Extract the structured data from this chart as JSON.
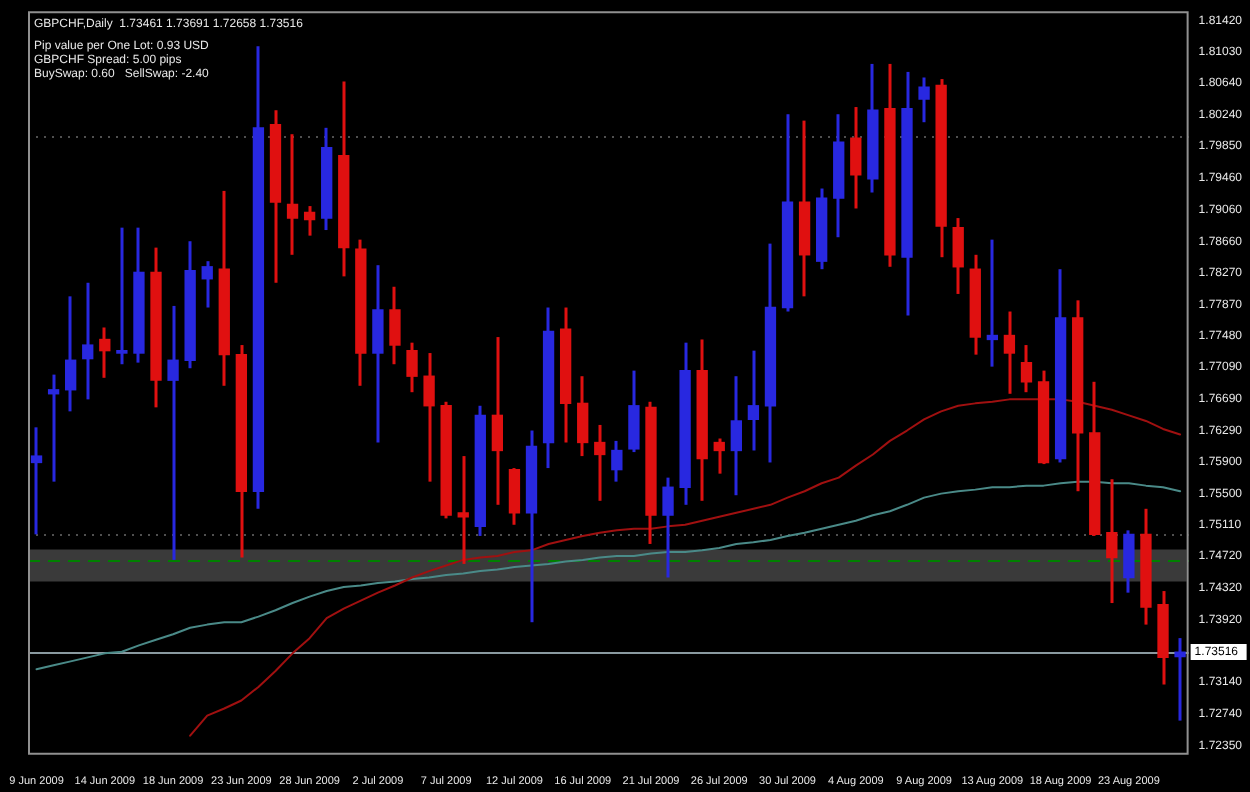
{
  "chart_data": {
    "type": "candlestick",
    "title": "GBPCHF,Daily  1.73461 1.73691 1.72658 1.73516",
    "annotations": [
      "Pip value per One Lot: 0.93 USD",
      "GBPCHF Spread: 5.00 pips",
      "BuySwap: 0.60   SellSwap: -2.40"
    ],
    "categories": [
      "9 Jun 2009",
      null,
      null,
      null,
      "14 Jun 2009",
      null,
      null,
      null,
      "18 Jun 2009",
      null,
      null,
      null,
      "23 Jun 2009",
      null,
      null,
      null,
      "28 Jun 2009",
      null,
      null,
      null,
      "2 Jul 2009",
      null,
      null,
      null,
      "7 Jul 2009",
      null,
      null,
      null,
      "12 Jul 2009",
      null,
      null,
      null,
      "16 Jul 2009",
      null,
      null,
      null,
      "21 Jul 2009",
      null,
      null,
      null,
      "26 Jul 2009",
      null,
      null,
      null,
      "30 Jul 2009",
      null,
      null,
      null,
      "4 Aug 2009",
      null,
      null,
      null,
      "9 Aug 2009",
      null,
      null,
      null,
      "13 Aug 2009",
      null,
      null,
      null,
      "18 Aug 2009",
      null,
      null,
      null,
      "23 Aug 2009",
      null,
      null,
      null
    ],
    "ohlc": [
      [
        1.7589,
        1.7633,
        1.7499,
        1.7597
      ],
      [
        1.7675,
        1.7699,
        1.7565,
        1.768
      ],
      [
        1.768,
        1.7797,
        1.7653,
        1.7717
      ],
      [
        1.7719,
        1.7814,
        1.7668,
        1.7736
      ],
      [
        1.7743,
        1.7758,
        1.7695,
        1.7729
      ],
      [
        1.7726,
        1.7883,
        1.7712,
        1.7729
      ],
      [
        1.7726,
        1.7883,
        1.7714,
        1.7827
      ],
      [
        1.7827,
        1.7858,
        1.7658,
        1.7692
      ],
      [
        1.7692,
        1.7785,
        1.7467,
        1.7717
      ],
      [
        1.7717,
        1.7866,
        1.7707,
        1.7829
      ],
      [
        1.7819,
        1.7841,
        1.7783,
        1.7834
      ],
      [
        1.7831,
        1.7929,
        1.7685,
        1.7724
      ],
      [
        1.7724,
        1.7736,
        1.747,
        1.7553
      ],
      [
        1.7553,
        1.811,
        1.7531,
        1.8008
      ],
      [
        1.8012,
        1.803,
        1.7814,
        1.7915
      ],
      [
        1.7912,
        1.8,
        1.7849,
        1.7895
      ],
      [
        1.7902,
        1.791,
        1.7873,
        1.7893
      ],
      [
        1.7895,
        1.8008,
        1.788,
        1.7983
      ],
      [
        1.7973,
        1.8066,
        1.7822,
        1.7858
      ],
      [
        1.7856,
        1.7868,
        1.7685,
        1.7726
      ],
      [
        1.7726,
        1.7836,
        1.7614,
        1.778
      ],
      [
        1.778,
        1.7809,
        1.7712,
        1.7736
      ],
      [
        1.7729,
        1.7739,
        1.7677,
        1.7697
      ],
      [
        1.7697,
        1.7726,
        1.7565,
        1.766
      ],
      [
        1.766,
        1.7665,
        1.7519,
        1.7523
      ],
      [
        1.7526,
        1.7597,
        1.7462,
        1.7521
      ],
      [
        1.7509,
        1.766,
        1.7497,
        1.7648
      ],
      [
        1.7648,
        1.7746,
        1.7536,
        1.7604
      ],
      [
        1.758,
        1.7582,
        1.7511,
        1.7526
      ],
      [
        1.7526,
        1.7629,
        1.7389,
        1.7609
      ],
      [
        1.7614,
        1.7783,
        1.7582,
        1.7753
      ],
      [
        1.7756,
        1.7783,
        1.7614,
        1.7663
      ],
      [
        1.7663,
        1.7697,
        1.7597,
        1.7614
      ],
      [
        1.7614,
        1.7636,
        1.7541,
        1.7599
      ],
      [
        1.758,
        1.7616,
        1.7565,
        1.7604
      ],
      [
        1.7606,
        1.7704,
        1.7602,
        1.766
      ],
      [
        1.7658,
        1.7665,
        1.7487,
        1.7523
      ],
      [
        1.7523,
        1.757,
        1.7445,
        1.7558
      ],
      [
        1.7558,
        1.7739,
        1.7536,
        1.7704
      ],
      [
        1.7704,
        1.7743,
        1.7541,
        1.7594
      ],
      [
        1.7614,
        1.7619,
        1.7575,
        1.7604
      ],
      [
        1.7604,
        1.7697,
        1.7548,
        1.7641
      ],
      [
        1.7643,
        1.7729,
        1.7604,
        1.766
      ],
      [
        1.766,
        1.7863,
        1.7589,
        1.7783
      ],
      [
        1.7783,
        1.8025,
        1.7778,
        1.7915
      ],
      [
        1.7915,
        1.8017,
        1.7797,
        1.7849
      ],
      [
        1.7841,
        1.7932,
        1.7831,
        1.792
      ],
      [
        1.792,
        1.8025,
        1.7871,
        1.799
      ],
      [
        1.7995,
        1.8034,
        1.7907,
        1.7949
      ],
      [
        1.7944,
        1.8088,
        1.7927,
        1.803
      ],
      [
        1.8032,
        1.8088,
        1.7834,
        1.7849
      ],
      [
        1.7846,
        1.8078,
        1.7773,
        1.8032
      ],
      [
        1.8044,
        1.8071,
        1.8015,
        1.8059
      ],
      [
        1.8061,
        1.8069,
        1.7846,
        1.7885
      ],
      [
        1.7883,
        1.7895,
        1.78,
        1.7834
      ],
      [
        1.7831,
        1.7849,
        1.7724,
        1.7746
      ],
      [
        1.7743,
        1.7868,
        1.7709,
        1.7748
      ],
      [
        1.7748,
        1.7778,
        1.7675,
        1.7726
      ],
      [
        1.7714,
        1.7736,
        1.7677,
        1.769
      ],
      [
        1.769,
        1.7704,
        1.7587,
        1.7589
      ],
      [
        1.7594,
        1.7831,
        1.7589,
        1.777
      ],
      [
        1.777,
        1.7792,
        1.7553,
        1.7626
      ],
      [
        1.7626,
        1.769,
        1.7497,
        1.7499
      ],
      [
        1.7501,
        1.7568,
        1.7413,
        1.747
      ],
      [
        1.7445,
        1.7504,
        1.7426,
        1.7499
      ],
      [
        1.7499,
        1.7531,
        1.7386,
        1.7408
      ],
      [
        1.7411,
        1.7428,
        1.7311,
        1.7345
      ],
      [
        1.73461,
        1.73691,
        1.72658,
        1.73516
      ]
    ],
    "colors": [
      "#2828e0",
      "#2828e0",
      "#2828e0",
      "#2828e0",
      "#e01010",
      "#2828e0",
      "#2828e0",
      "#e01010",
      "#2828e0",
      "#2828e0",
      "#2828e0",
      "#e01010",
      "#e01010",
      "#2828e0",
      "#e01010",
      "#e01010",
      "#e01010",
      "#2828e0",
      "#e01010",
      "#e01010",
      "#2828e0",
      "#e01010",
      "#e01010",
      "#e01010",
      "#e01010",
      "#e01010",
      "#2828e0",
      "#e01010",
      "#e01010",
      "#2828e0",
      "#2828e0",
      "#e01010",
      "#e01010",
      "#e01010",
      "#2828e0",
      "#2828e0",
      "#e01010",
      "#2828e0",
      "#2828e0",
      "#e01010",
      "#e01010",
      "#2828e0",
      "#2828e0",
      "#2828e0",
      "#2828e0",
      "#e01010",
      "#2828e0",
      "#2828e0",
      "#e01010",
      "#2828e0",
      "#e01010",
      "#2828e0",
      "#2828e0",
      "#e01010",
      "#e01010",
      "#e01010",
      "#2828e0",
      "#e01010",
      "#e01010",
      "#e01010",
      "#2828e0",
      "#e01010",
      "#e01010",
      "#e01010",
      "#2828e0",
      "#e01010",
      "#e01010",
      "#2828e0"
    ],
    "series": [
      {
        "type": "line",
        "color": "#a01010",
        "values": [
          null,
          null,
          null,
          null,
          null,
          null,
          null,
          null,
          null,
          1.7247,
          1.7272,
          1.7281,
          1.7291,
          1.7308,
          1.7328,
          1.735,
          1.7369,
          1.7394,
          1.7406,
          1.7416,
          1.7426,
          1.7435,
          1.7445,
          1.7453,
          1.746,
          1.7467,
          1.747,
          1.7472,
          1.7477,
          1.7479,
          1.7487,
          1.7492,
          1.7497,
          1.7501,
          1.7504,
          1.7506,
          1.7506,
          1.7509,
          1.7511,
          1.7516,
          1.7521,
          1.7526,
          1.7531,
          1.7536,
          1.7545,
          1.7553,
          1.7563,
          1.757,
          1.7585,
          1.7599,
          1.7616,
          1.7629,
          1.7643,
          1.7653,
          1.766,
          1.7663,
          1.7665,
          1.7668,
          1.7668,
          1.7668,
          1.7668,
          1.7665,
          1.766,
          1.7655,
          1.7648,
          1.7641,
          1.7631,
          1.7624
        ]
      },
      {
        "type": "line",
        "color": "#4a8a88",
        "values": [
          1.733,
          1.7335,
          1.734,
          1.7345,
          1.735,
          1.7352,
          1.736,
          1.7367,
          1.7374,
          1.7382,
          1.7386,
          1.7389,
          1.7389,
          1.7396,
          1.7404,
          1.7413,
          1.7421,
          1.7428,
          1.7433,
          1.7435,
          1.7438,
          1.744,
          1.7443,
          1.7445,
          1.7448,
          1.745,
          1.7453,
          1.7455,
          1.7458,
          1.746,
          1.7462,
          1.7465,
          1.7467,
          1.747,
          1.7472,
          1.7472,
          1.7475,
          1.7477,
          1.7477,
          1.7479,
          1.7482,
          1.7487,
          1.7489,
          1.7492,
          1.7497,
          1.7501,
          1.7506,
          1.7511,
          1.7516,
          1.7523,
          1.7528,
          1.7536,
          1.7545,
          1.755,
          1.7553,
          1.7555,
          1.7558,
          1.7558,
          1.756,
          1.756,
          1.7563,
          1.7565,
          1.7565,
          1.7563,
          1.7563,
          1.756,
          1.7558,
          1.7553
        ]
      }
    ],
    "ylim": [
      1.7223,
      1.8154
    ],
    "yticks": [
      {
        "value": 1.8142,
        "label": "1.81420"
      },
      {
        "value": 1.8103,
        "label": "1.81030"
      },
      {
        "value": 1.8064,
        "label": "1.80640"
      },
      {
        "value": 1.8024,
        "label": "1.80240"
      },
      {
        "value": 1.7985,
        "label": "1.79850"
      },
      {
        "value": 1.7946,
        "label": "1.79460"
      },
      {
        "value": 1.7906,
        "label": "1.79060"
      },
      {
        "value": 1.7866,
        "label": "1.78660"
      },
      {
        "value": 1.7827,
        "label": "1.78270"
      },
      {
        "value": 1.7787,
        "label": "1.77870"
      },
      {
        "value": 1.7748,
        "label": "1.77480"
      },
      {
        "value": 1.7709,
        "label": "1.77090"
      },
      {
        "value": 1.7669,
        "label": "1.76690"
      },
      {
        "value": 1.7629,
        "label": "1.76290"
      },
      {
        "value": 1.759,
        "label": "1.75900"
      },
      {
        "value": 1.755,
        "label": "1.75500"
      },
      {
        "value": 1.7511,
        "label": "1.75110"
      },
      {
        "value": 1.7472,
        "label": "1.74720"
      },
      {
        "value": 1.7432,
        "label": "1.74320"
      },
      {
        "value": 1.7392,
        "label": "1.73920"
      },
      {
        "value": 1.7314,
        "label": "1.73140"
      },
      {
        "value": 1.7274,
        "label": "1.72740"
      },
      {
        "value": 1.7235,
        "label": "1.72350"
      }
    ],
    "ref_lines": [
      {
        "axis": "y",
        "value": 1.7998,
        "color": "#505050",
        "line_style": "dotted"
      },
      {
        "axis": "y",
        "value": 1.7499,
        "color": "#505050",
        "line_style": "dotted"
      },
      {
        "axis": "y",
        "value": 1.7467,
        "color": "#008000",
        "line_style": "dashed"
      },
      {
        "axis": "y",
        "value": 1.73516,
        "label": "1.73516",
        "color": "#8a9aa0",
        "line_style": "solid"
      }
    ],
    "bands": [
      {
        "axis": "y",
        "from": 1.744,
        "to": 1.748,
        "color": "#3a3a3a"
      }
    ],
    "legend": false
  }
}
